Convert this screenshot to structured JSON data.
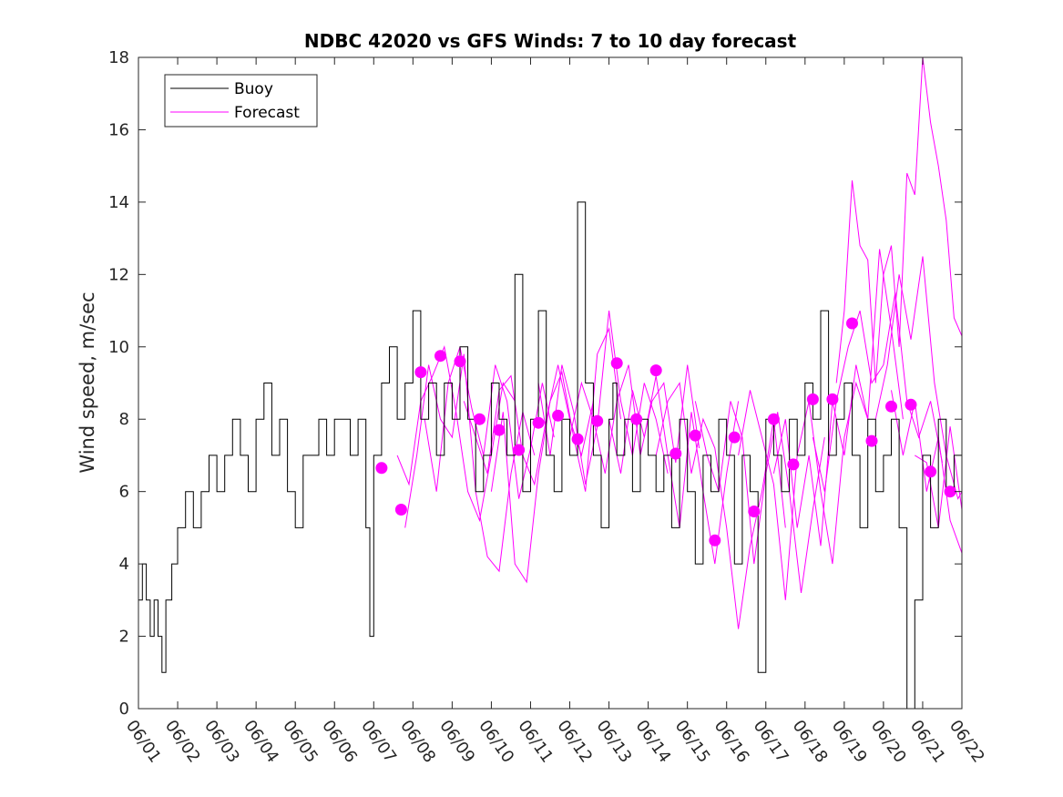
{
  "chart_data": {
    "type": "line",
    "title": "NDBC 42020 vs GFS Winds: 7 to 10 day forecast",
    "xlabel": "",
    "ylabel": "Wind speed, m/sec",
    "xlim": [
      0,
      21
    ],
    "ylim": [
      0,
      18
    ],
    "yticks": [
      0,
      2,
      4,
      6,
      8,
      10,
      12,
      14,
      16,
      18
    ],
    "xticks": [
      "06/01",
      "06/02",
      "06/03",
      "06/04",
      "06/05",
      "06/06",
      "06/07",
      "06/08",
      "06/09",
      "06/10",
      "06/11",
      "06/12",
      "06/13",
      "06/14",
      "06/15",
      "06/16",
      "06/17",
      "06/18",
      "06/19",
      "06/20",
      "06/21",
      "06/22"
    ],
    "legend": {
      "placement": "top-left",
      "entries": [
        "Buoy",
        "Forecast"
      ]
    },
    "colors": {
      "buoy": "#000000",
      "forecast": "#ff00ff"
    },
    "grid": false,
    "buoy_series": {
      "name": "Buoy",
      "x_unit": "days since 06/01",
      "x": [
        0.0,
        0.1,
        0.2,
        0.3,
        0.4,
        0.5,
        0.6,
        0.7,
        0.85,
        1.0,
        1.2,
        1.4,
        1.6,
        1.8,
        2.0,
        2.2,
        2.4,
        2.6,
        2.8,
        3.0,
        3.2,
        3.4,
        3.6,
        3.8,
        4.0,
        4.2,
        4.4,
        4.6,
        4.8,
        5.0,
        5.2,
        5.4,
        5.6,
        5.8,
        5.9,
        6.0,
        6.2,
        6.4,
        6.6,
        6.8,
        7.0,
        7.2,
        7.4,
        7.6,
        7.8,
        8.0,
        8.2,
        8.4,
        8.6,
        8.8,
        9.0,
        9.2,
        9.4,
        9.6,
        9.8,
        10.0,
        10.2,
        10.4,
        10.6,
        10.8,
        11.0,
        11.2,
        11.4,
        11.6,
        11.8,
        12.0,
        12.1,
        12.2,
        12.4,
        12.6,
        12.8,
        13.0,
        13.2,
        13.4,
        13.6,
        13.8,
        14.0,
        14.2,
        14.4,
        14.6,
        14.8,
        15.0,
        15.2,
        15.4,
        15.6,
        15.8,
        16.0,
        16.2,
        16.4,
        16.6,
        16.8,
        17.0,
        17.2,
        17.4,
        17.6,
        17.8,
        18.0,
        18.2,
        18.4,
        18.6,
        18.8,
        19.0,
        19.2,
        19.4,
        19.6,
        19.8,
        20.0,
        20.2,
        20.4,
        20.6,
        20.8,
        21.0
      ],
      "y": [
        3,
        4,
        3,
        2,
        3,
        2,
        1,
        3,
        4,
        5,
        6,
        5,
        6,
        7,
        6,
        7,
        8,
        7,
        6,
        8,
        9,
        7,
        8,
        6,
        5,
        7,
        7,
        8,
        7,
        8,
        8,
        7,
        8,
        5,
        2,
        7,
        9,
        10,
        8,
        9,
        11,
        8,
        9,
        7,
        9,
        8,
        10,
        8,
        6,
        7,
        9,
        8,
        7,
        12,
        6,
        8,
        11,
        7,
        6,
        8,
        7,
        14,
        9,
        7,
        5,
        8,
        9,
        7,
        8,
        6,
        8,
        7,
        6,
        7,
        5,
        8,
        6,
        4,
        7,
        6,
        8,
        7,
        4,
        7,
        6,
        1,
        8,
        7,
        6,
        8,
        7,
        9,
        8,
        11,
        7,
        8,
        9,
        7,
        5,
        8,
        6,
        7,
        8,
        5,
        0,
        3,
        7,
        5,
        8,
        6,
        7,
        7
      ]
    },
    "forecast_markers": {
      "name": "Forecast",
      "x": [
        6.2,
        6.7,
        7.2,
        7.7,
        8.2,
        8.7,
        9.2,
        9.7,
        10.2,
        10.7,
        11.2,
        11.7,
        12.2,
        12.7,
        13.2,
        13.7,
        14.2,
        14.7,
        15.2,
        15.7,
        16.2,
        16.7,
        17.2,
        17.7,
        18.2,
        18.7,
        19.2,
        19.7,
        20.2,
        20.7
      ],
      "y": [
        6.65,
        5.5,
        9.3,
        9.75,
        9.6,
        8.0,
        7.7,
        7.15,
        7.9,
        8.1,
        7.45,
        7.95,
        9.55,
        8.0,
        9.35,
        7.05,
        7.55,
        4.65,
        7.5,
        5.45,
        8.0,
        6.75,
        8.55,
        8.55,
        10.65,
        7.4,
        8.35,
        8.4,
        6.55,
        6.0
      ]
    },
    "forecast_series": [
      {
        "x": [
          6.6,
          6.9,
          7.2,
          7.5,
          7.8,
          8.1,
          8.4,
          8.7,
          9.0,
          9.3,
          9.6
        ],
        "y": [
          7.0,
          6.2,
          8.5,
          9.2,
          10.0,
          8.2,
          6.0,
          5.2,
          7.0,
          9.0,
          8.5
        ]
      },
      {
        "x": [
          6.8,
          7.1,
          7.4,
          7.7,
          8.0,
          8.3,
          8.6,
          8.9,
          9.2,
          9.5,
          9.8,
          10.1
        ],
        "y": [
          5.0,
          7.0,
          9.5,
          8.0,
          7.5,
          9.8,
          6.0,
          4.2,
          3.8,
          6.5,
          8.2,
          7.0
        ]
      },
      {
        "x": [
          7.3,
          7.6,
          7.9,
          8.2,
          8.5,
          8.8,
          9.1,
          9.4,
          9.7,
          10.0,
          10.3,
          10.6
        ],
        "y": [
          8.0,
          6.0,
          9.0,
          10.0,
          8.3,
          7.0,
          9.5,
          8.5,
          5.8,
          7.2,
          9.0,
          7.5
        ]
      },
      {
        "x": [
          8.3,
          8.6,
          8.9,
          9.2,
          9.5,
          9.8,
          10.1,
          10.4,
          10.7,
          11.0,
          11.3,
          11.6
        ],
        "y": [
          8.5,
          7.5,
          6.5,
          8.8,
          9.2,
          7.0,
          6.2,
          8.0,
          9.5,
          8.0,
          7.0,
          8.5
        ]
      },
      {
        "x": [
          9.0,
          9.3,
          9.6,
          9.9,
          10.2,
          10.5,
          10.8,
          11.1,
          11.4,
          11.7,
          12.0,
          12.3
        ],
        "y": [
          6.0,
          8.2,
          4.0,
          3.5,
          6.5,
          8.5,
          9.3,
          7.5,
          6.0,
          9.8,
          10.5,
          8.0
        ]
      },
      {
        "x": [
          10.2,
          10.5,
          10.8,
          11.1,
          11.4,
          11.7,
          12.0,
          12.3,
          12.6,
          12.9,
          13.2,
          13.5
        ],
        "y": [
          9.0,
          7.0,
          9.5,
          8.2,
          6.2,
          7.8,
          11.0,
          8.5,
          7.0,
          9.0,
          8.0,
          6.5
        ]
      },
      {
        "x": [
          11.0,
          11.3,
          11.6,
          11.9,
          12.2,
          12.5,
          12.8,
          13.1,
          13.4,
          13.7,
          14.0,
          14.3
        ],
        "y": [
          7.5,
          9.0,
          8.0,
          6.5,
          8.5,
          9.5,
          7.0,
          8.5,
          9.0,
          6.8,
          9.5,
          7.2
        ]
      },
      {
        "x": [
          12.0,
          12.3,
          12.6,
          12.9,
          13.2,
          13.5,
          13.8,
          14.1,
          14.4,
          14.7,
          15.0,
          15.3
        ],
        "y": [
          8.0,
          6.5,
          8.8,
          7.5,
          9.2,
          7.0,
          5.0,
          8.2,
          6.0,
          4.0,
          6.5,
          8.5
        ]
      },
      {
        "x": [
          13.2,
          13.5,
          13.8,
          14.1,
          14.4,
          14.7,
          15.0,
          15.3,
          15.6,
          15.9,
          16.2,
          16.5
        ],
        "y": [
          7.0,
          8.5,
          9.0,
          6.5,
          8.0,
          7.2,
          5.0,
          2.2,
          4.5,
          6.0,
          8.0,
          5.0
        ]
      },
      {
        "x": [
          14.2,
          14.5,
          14.8,
          15.1,
          15.4,
          15.7,
          16.0,
          16.3,
          16.6,
          16.9,
          17.2,
          17.5
        ],
        "y": [
          8.5,
          7.0,
          6.0,
          8.5,
          7.5,
          4.0,
          6.5,
          8.2,
          6.0,
          3.2,
          5.5,
          7.5
        ]
      },
      {
        "x": [
          15.3,
          15.6,
          15.9,
          16.2,
          16.5,
          16.8,
          17.1,
          17.4,
          17.7,
          18.0,
          18.3,
          18.6
        ],
        "y": [
          7.0,
          8.8,
          7.5,
          6.2,
          3.0,
          7.0,
          8.5,
          6.0,
          4.0,
          7.5,
          9.0,
          8.0
        ]
      },
      {
        "x": [
          16.2,
          16.5,
          16.8,
          17.1,
          17.4,
          17.7,
          18.0,
          18.3,
          18.6,
          18.9,
          19.2,
          19.5
        ],
        "y": [
          6.5,
          8.0,
          5.0,
          7.0,
          4.5,
          8.5,
          7.0,
          9.5,
          8.0,
          12.7,
          10.5,
          8.0
        ]
      },
      {
        "x": [
          17.2,
          17.5,
          17.8,
          18.1,
          18.4,
          18.7,
          19.0,
          19.3,
          19.6,
          19.9,
          20.2,
          20.5
        ],
        "y": [
          7.5,
          6.0,
          8.5,
          10.0,
          11.0,
          9.0,
          9.5,
          11.5,
          8.5,
          7.5,
          8.5,
          6.8
        ]
      },
      {
        "x": [
          17.8,
          18.0,
          18.2,
          18.4,
          18.6,
          18.8,
          19.0,
          19.2,
          19.4,
          19.6,
          19.8,
          20.0,
          20.2,
          20.4,
          20.6,
          20.8,
          21.0
        ],
        "y": [
          9.0,
          11.0,
          14.6,
          12.8,
          12.4,
          9.0,
          12.0,
          12.8,
          10.0,
          14.8,
          14.2,
          18.0,
          16.2,
          15.0,
          13.5,
          10.8,
          10.3
        ]
      },
      {
        "x": [
          18.8,
          19.1,
          19.4,
          19.7,
          20.0,
          20.3,
          20.6,
          20.9,
          21.0
        ],
        "y": [
          8.0,
          9.5,
          12.0,
          10.2,
          12.5,
          9.0,
          7.0,
          5.8,
          6.0
        ]
      },
      {
        "x": [
          19.2,
          19.5,
          19.8,
          20.1,
          20.4,
          20.7,
          21.0
        ],
        "y": [
          8.8,
          7.0,
          8.5,
          6.0,
          7.5,
          5.2,
          4.3
        ]
      },
      {
        "x": [
          19.8,
          20.1,
          20.4,
          20.7,
          21.0
        ],
        "y": [
          7.0,
          6.8,
          5.0,
          7.8,
          5.5
        ]
      }
    ]
  }
}
